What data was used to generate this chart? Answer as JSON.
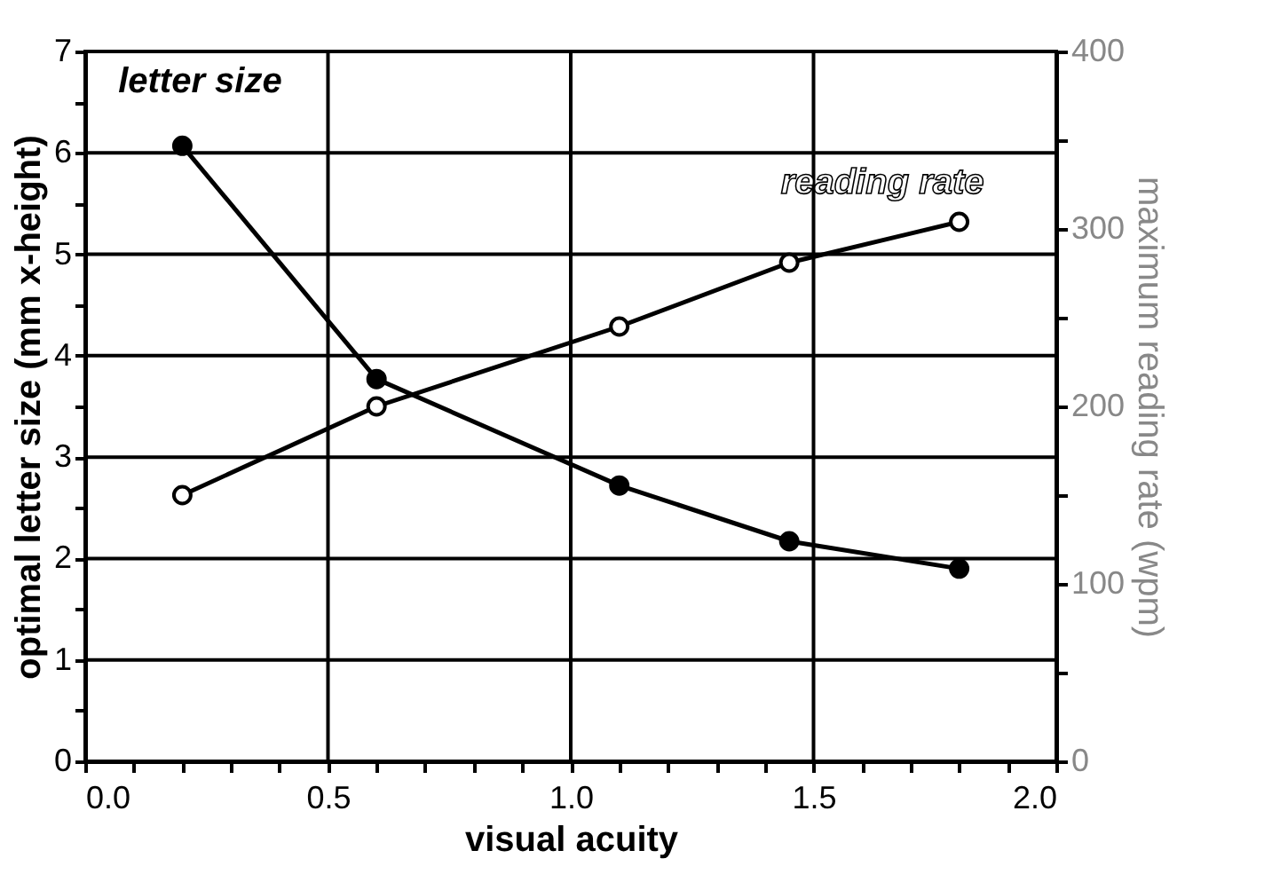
{
  "chart_data": {
    "type": "line",
    "xlabel": "visual acuity",
    "ylabel": "optimal letter size (mm x-height)",
    "y2label": "maximum reading rate (wpm)",
    "x": [
      0.2,
      0.6,
      1.1,
      1.45,
      1.8
    ],
    "series": [
      {
        "name": "letter size",
        "color": "#000000",
        "values": [
          6.07,
          3.77,
          2.72,
          2.17,
          1.9
        ]
      },
      {
        "name": "reading rate",
        "color": "#000000",
        "axis": "y2",
        "values": [
          150,
          200,
          245,
          281,
          304
        ]
      }
    ],
    "xlim": [
      0,
      2
    ],
    "xticks": [
      {
        "value": 0,
        "label": "0.0"
      },
      {
        "value": 0.1,
        "label": null
      },
      {
        "value": 0.2,
        "label": null
      },
      {
        "value": 0.3,
        "label": null
      },
      {
        "value": 0.4,
        "label": null
      },
      {
        "value": 0.5,
        "label": "0.5"
      },
      {
        "value": 0.6,
        "label": null
      },
      {
        "value": 0.7,
        "label": null
      },
      {
        "value": 0.8,
        "label": null
      },
      {
        "value": 0.9,
        "label": null
      },
      {
        "value": 1,
        "label": "1.0"
      },
      {
        "value": 1.1,
        "label": null
      },
      {
        "value": 1.2,
        "label": null
      },
      {
        "value": 1.3,
        "label": null
      },
      {
        "value": 1.4,
        "label": null
      },
      {
        "value": 1.5,
        "label": "1.5"
      },
      {
        "value": 1.6,
        "label": null
      },
      {
        "value": 1.7,
        "label": null
      },
      {
        "value": 1.8,
        "label": null
      },
      {
        "value": 1.9,
        "label": null
      },
      {
        "value": 2,
        "label": "2.0"
      }
    ],
    "ylim": [
      0,
      7
    ],
    "yticks": [
      0,
      {
        "value": 0.5,
        "label": null
      },
      1,
      {
        "value": 1.5,
        "label": null
      },
      2,
      {
        "value": 2.5,
        "label": null
      },
      3,
      {
        "value": 3.5,
        "label": null
      },
      4,
      {
        "value": 4.5,
        "label": null
      },
      5,
      {
        "value": 5.5,
        "label": null
      },
      6,
      {
        "value": 6.5,
        "label": null
      },
      7
    ],
    "y2lim": [
      0,
      400
    ],
    "y2ticks": [
      0,
      {
        "value": 50,
        "label": null
      },
      100,
      {
        "value": 150,
        "label": null
      },
      200,
      {
        "value": 250,
        "label": null
      },
      300,
      {
        "value": 350,
        "label": null
      },
      400
    ],
    "grid": true,
    "marker": "circle",
    "line_style": "solid",
    "legend": false
  }
}
